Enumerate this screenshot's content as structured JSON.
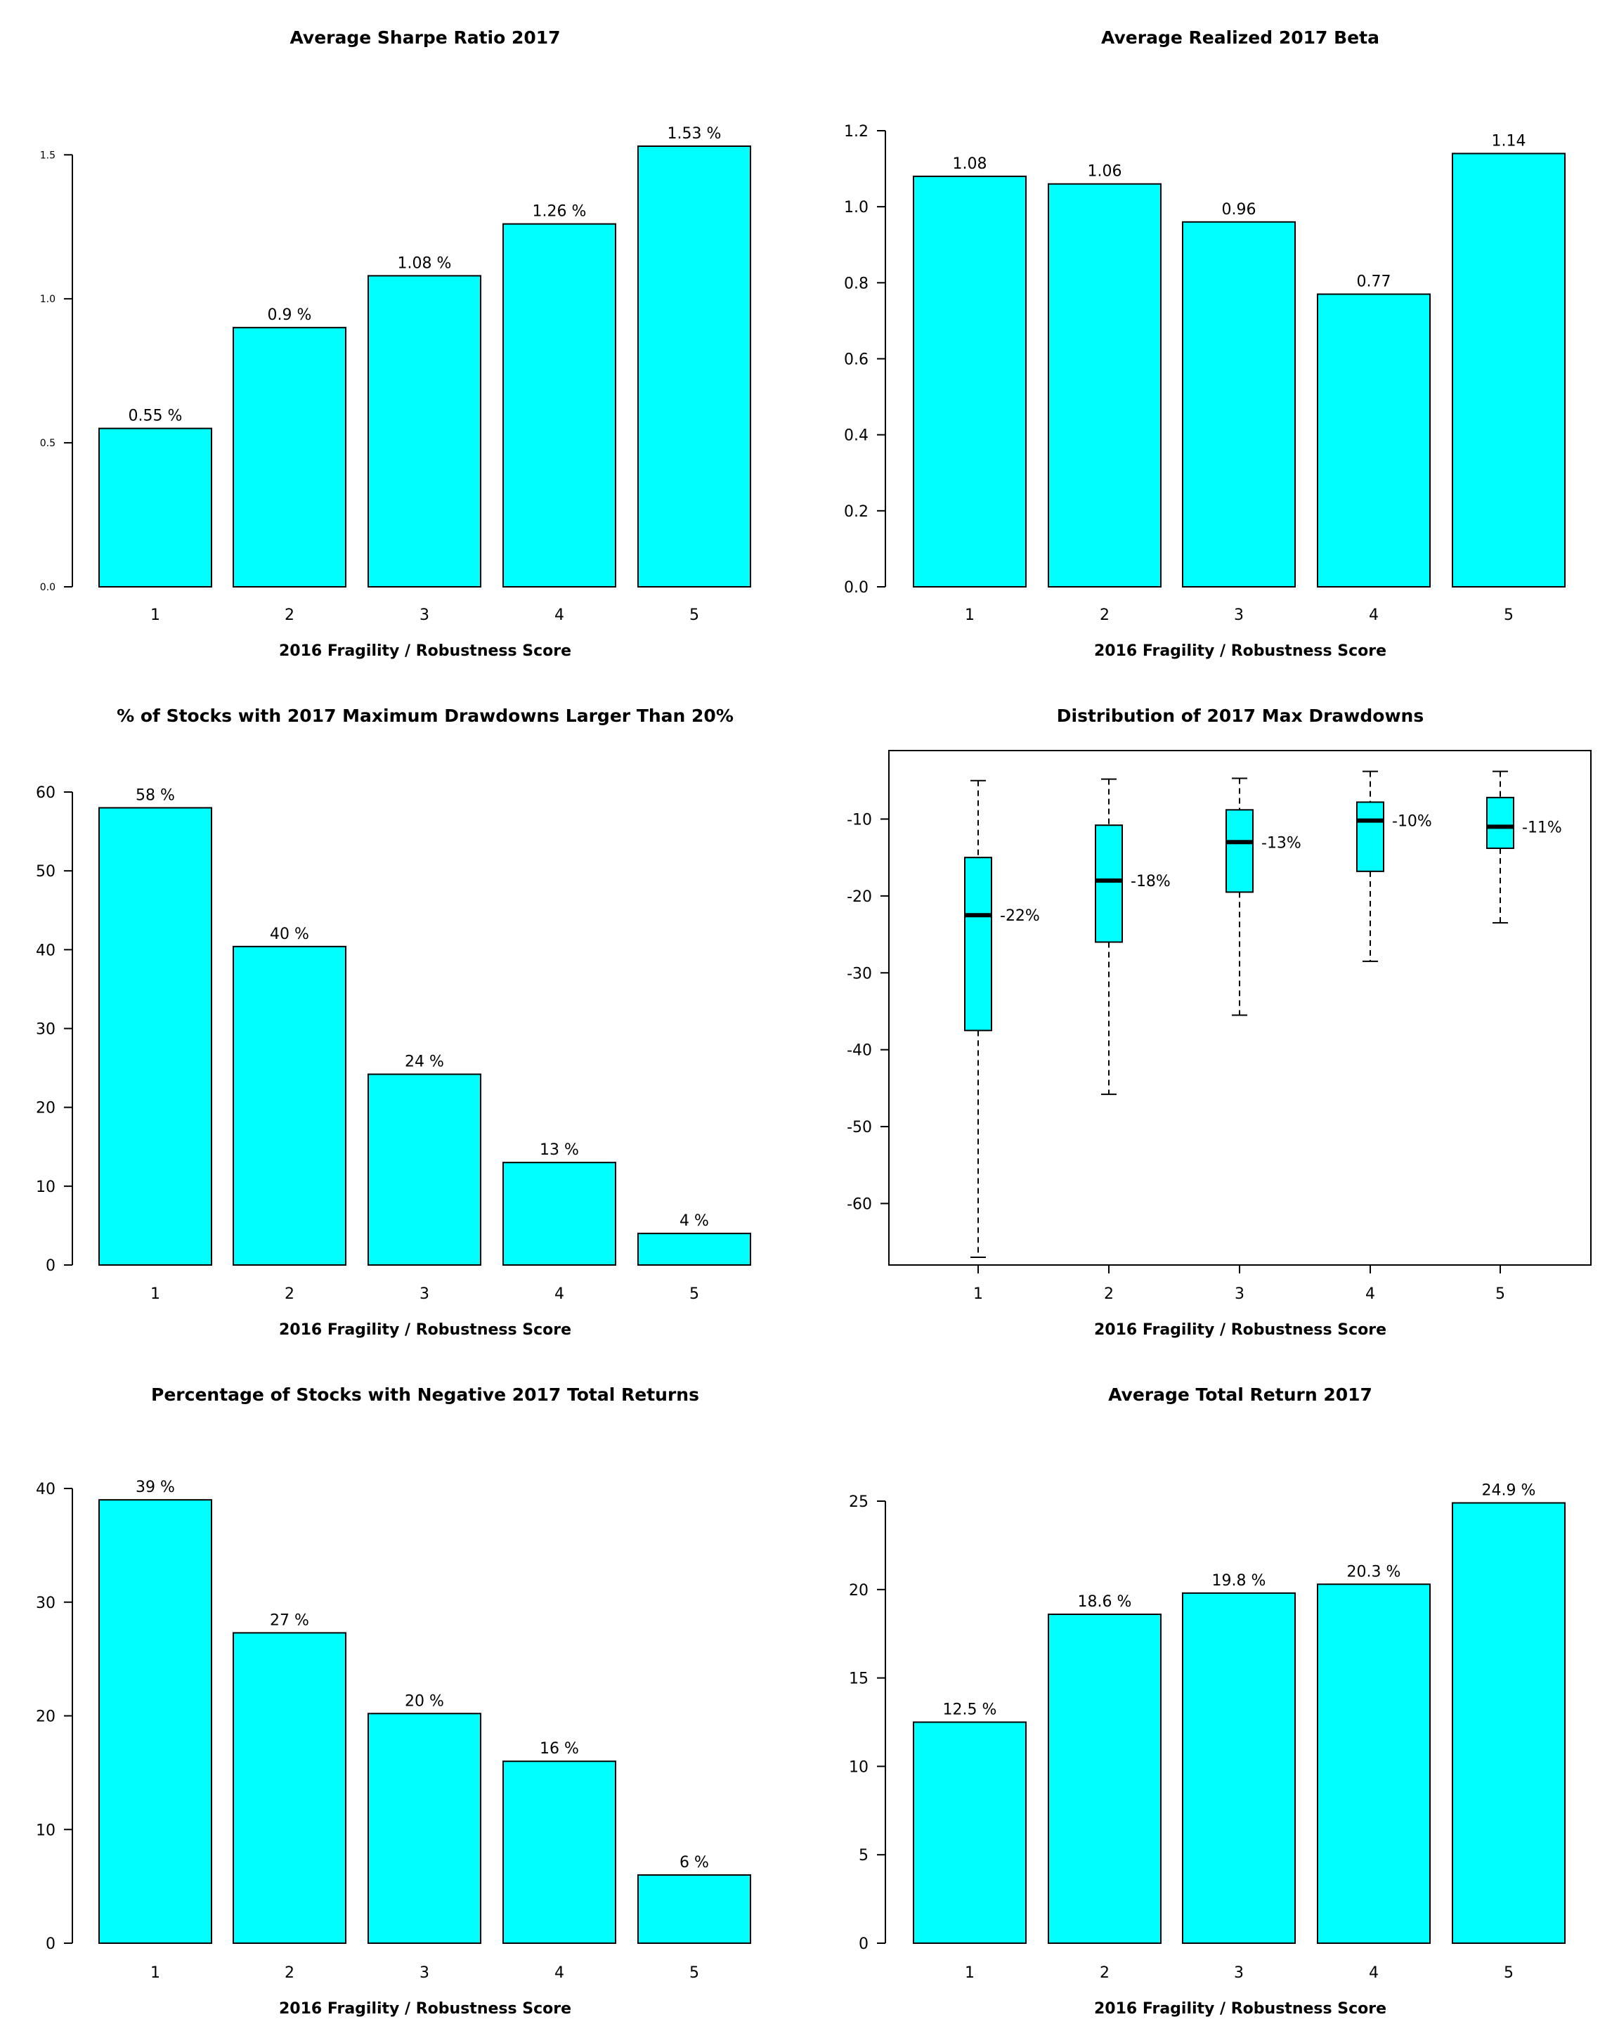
{
  "colors": {
    "bar_fill": "#00FFFF",
    "stroke": "#000000",
    "background": "#FFFFFF"
  },
  "chart_data": [
    {
      "type": "bar",
      "title": "Average Sharpe Ratio 2017",
      "xlabel": "2016 Fragility / Robustness Score",
      "ylabel": "",
      "categories": [
        "1",
        "2",
        "3",
        "4",
        "5"
      ],
      "values": [
        0.55,
        0.9,
        1.08,
        1.26,
        1.53
      ],
      "data_labels": [
        "0.55 %",
        "0.9 %",
        "1.08 %",
        "1.26 %",
        "1.53 %"
      ],
      "yticks": [
        0.0,
        0.5,
        1.0,
        1.5
      ],
      "ytick_labels": [
        "0.0",
        "0.5",
        "1.0",
        "1.5"
      ],
      "ylim": [
        0,
        1.53
      ],
      "grid": false
    },
    {
      "type": "bar",
      "title": "Average Realized 2017 Beta",
      "xlabel": "2016 Fragility / Robustness Score",
      "ylabel": "",
      "categories": [
        "1",
        "2",
        "3",
        "4",
        "5"
      ],
      "values": [
        1.08,
        1.06,
        0.96,
        0.77,
        1.14
      ],
      "data_labels": [
        "1.08",
        "1.06",
        "0.96",
        "0.77",
        "1.14"
      ],
      "yticks": [
        0.0,
        0.2,
        0.4,
        0.6,
        0.8,
        1.0,
        1.2
      ],
      "ytick_labels": [
        "0.0",
        "0.2",
        "0.4",
        "0.6",
        "0.8",
        "1.0",
        "1.2"
      ],
      "ylim": [
        0,
        1.2
      ],
      "grid": false
    },
    {
      "type": "bar",
      "title": "% of Stocks with 2017 Maximum Drawdowns Larger Than 20%",
      "xlabel": "2016 Fragility / Robustness Score",
      "ylabel": "",
      "categories": [
        "1",
        "2",
        "3",
        "4",
        "5"
      ],
      "values": [
        58,
        40.4,
        24.2,
        13,
        4
      ],
      "data_labels": [
        "58 %",
        "40 %",
        "24 %",
        "13 %",
        "4 %"
      ],
      "yticks": [
        0,
        10,
        20,
        30,
        40,
        50,
        60
      ],
      "ytick_labels": [
        "0",
        "10",
        "20",
        "30",
        "40",
        "50",
        "60"
      ],
      "ylim": [
        0,
        60
      ],
      "grid": false
    },
    {
      "type": "box",
      "title": "Distribution of 2017 Max Drawdowns",
      "xlabel": "2016 Fragility / Robustness Score",
      "ylabel": "",
      "categories": [
        "1",
        "2",
        "3",
        "4",
        "5"
      ],
      "boxes": [
        {
          "whisker_low": -67,
          "q1": -37.5,
          "median": -22.5,
          "q3": -15,
          "whisker_high": -5
        },
        {
          "whisker_low": -45.8,
          "q1": -26,
          "median": -18,
          "q3": -10.8,
          "whisker_high": -4.8
        },
        {
          "whisker_low": -35.5,
          "q1": -19.5,
          "median": -13,
          "q3": -8.8,
          "whisker_high": -4.7
        },
        {
          "whisker_low": -28.5,
          "q1": -16.8,
          "median": -10.2,
          "q3": -7.8,
          "whisker_high": -3.8
        },
        {
          "whisker_low": -23.5,
          "q1": -13.8,
          "median": -11,
          "q3": -7.2,
          "whisker_high": -3.8
        }
      ],
      "median_labels": [
        "-22%",
        "-18%",
        "-13%",
        "-10%",
        "-11%"
      ],
      "yticks": [
        -60,
        -50,
        -40,
        -30,
        -20,
        -10
      ],
      "ytick_labels": [
        "-60",
        "-50",
        "-40",
        "-30",
        "-20",
        "-10"
      ],
      "ylim": [
        -68,
        -1
      ],
      "grid": false
    },
    {
      "type": "bar",
      "title": "Percentage of Stocks with Negative 2017 Total Returns",
      "xlabel": "2016 Fragility / Robustness Score",
      "ylabel": "",
      "categories": [
        "1",
        "2",
        "3",
        "4",
        "5"
      ],
      "values": [
        39,
        27.3,
        20.2,
        16,
        6
      ],
      "data_labels": [
        "39 %",
        "27 %",
        "20 %",
        "16 %",
        "6 %"
      ],
      "yticks": [
        0,
        10,
        20,
        30,
        40
      ],
      "ytick_labels": [
        "0",
        "10",
        "20",
        "30",
        "40"
      ],
      "ylim": [
        0,
        40
      ],
      "grid": false
    },
    {
      "type": "bar",
      "title": "Average Total Return 2017",
      "xlabel": "2016 Fragility / Robustness Score",
      "ylabel": "",
      "categories": [
        "1",
        "2",
        "3",
        "4",
        "5"
      ],
      "values": [
        12.5,
        18.6,
        19.8,
        20.3,
        24.9
      ],
      "data_labels": [
        "12.5 %",
        "18.6 %",
        "19.8 %",
        "20.3 %",
        "24.9 %"
      ],
      "yticks": [
        0,
        5,
        10,
        15,
        20,
        25
      ],
      "ytick_labels": [
        "0",
        "5",
        "10",
        "15",
        "20",
        "25"
      ],
      "ylim": [
        0,
        25
      ],
      "grid": false
    }
  ]
}
